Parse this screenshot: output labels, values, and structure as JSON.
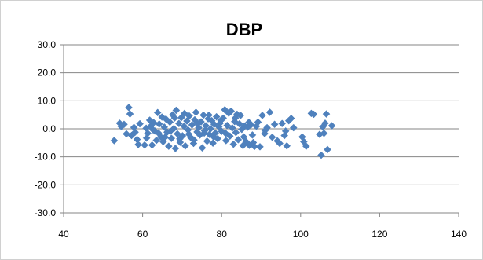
{
  "chart_data": {
    "type": "scatter",
    "title": "DBP",
    "xlabel": "",
    "ylabel": "",
    "xlim": [
      40,
      140
    ],
    "ylim": [
      -30,
      30
    ],
    "x_ticks": [
      40,
      60,
      80,
      100,
      120,
      140
    ],
    "x_tick_labels": [
      "40",
      "60",
      "80",
      "100",
      "120",
      "140"
    ],
    "y_ticks": [
      30,
      20,
      10,
      0,
      -10,
      -20,
      -30
    ],
    "y_tick_labels": [
      "30.0",
      "20.0",
      "10.0",
      "0.0",
      "-10.0",
      "-20.0",
      "-30.0"
    ],
    "grid": "horizontal",
    "legend": "none",
    "marker": "diamond",
    "marker_color": "#4f81bd",
    "grid_color": "#868686",
    "axis_color": "#868686",
    "series": [
      {
        "points": [
          [
            52.8,
            -4.2
          ],
          [
            54.2,
            2.0
          ],
          [
            54.6,
            0.8
          ],
          [
            55.3,
            1.6
          ],
          [
            55.9,
            -1.8
          ],
          [
            56.5,
            7.6
          ],
          [
            56.8,
            5.3
          ],
          [
            57.2,
            -2.4
          ],
          [
            57.8,
            0.5
          ],
          [
            58.1,
            -1.2
          ],
          [
            58.6,
            -3.8
          ],
          [
            58.9,
            -5.6
          ],
          [
            60.5,
            -5.8
          ],
          [
            60.9,
            0.2
          ],
          [
            61.3,
            -1.6
          ],
          [
            61.8,
            3.1
          ],
          [
            62.1,
            1.0
          ],
          [
            62.4,
            -5.8
          ],
          [
            62.8,
            2.2
          ],
          [
            63.1,
            -0.8
          ],
          [
            63.5,
            -4.1
          ],
          [
            63.8,
            5.8
          ],
          [
            64.2,
            1.7
          ],
          [
            64.6,
            -2.9
          ],
          [
            64.9,
            4.2
          ],
          [
            65.2,
            -4.6
          ],
          [
            65.5,
            0.6
          ],
          [
            65.9,
            3.5
          ],
          [
            66.2,
            -1.2
          ],
          [
            66.6,
            -6.2
          ],
          [
            66.9,
            2.4
          ],
          [
            67.3,
            -3.4
          ],
          [
            67.6,
            5.0
          ],
          [
            67.9,
            0.1
          ],
          [
            68.3,
            -7.0
          ],
          [
            68.5,
            6.6
          ],
          [
            68.8,
            -1.8
          ],
          [
            69.2,
            1.9
          ],
          [
            69.5,
            -4.8
          ],
          [
            69.8,
            4.0
          ],
          [
            70.1,
            -2.5
          ],
          [
            70.5,
            0.9
          ],
          [
            70.8,
            -6.1
          ],
          [
            71.2,
            2.8
          ],
          [
            71.5,
            -0.4
          ],
          [
            71.8,
            4.6
          ],
          [
            72.2,
            -3.1
          ],
          [
            72.5,
            1.4
          ],
          [
            72.9,
            -5.2
          ],
          [
            73.2,
            3.2
          ],
          [
            73.5,
            5.9
          ],
          [
            73.8,
            -1.1
          ],
          [
            74.2,
            0.4
          ],
          [
            74.5,
            -2.2
          ],
          [
            74.8,
            2.5
          ],
          [
            75.1,
            -6.8
          ],
          [
            75.4,
            4.9
          ],
          [
            75.7,
            -0.7
          ],
          [
            76.0,
            1.1
          ],
          [
            76.3,
            -4.4
          ],
          [
            76.6,
            3.6
          ],
          [
            76.9,
            -2.0
          ],
          [
            77.2,
            0.0
          ],
          [
            77.5,
            2.9
          ],
          [
            77.8,
            -5.1
          ],
          [
            78.1,
            1.6
          ],
          [
            78.4,
            -1.5
          ],
          [
            78.7,
            4.3
          ],
          [
            79.0,
            -3.5
          ],
          [
            79.3,
            0.7
          ],
          [
            79.6,
            2.0
          ],
          [
            80.0,
            -0.9
          ],
          [
            80.4,
            3.8
          ],
          [
            80.8,
            6.8
          ],
          [
            81.1,
            -4.2
          ],
          [
            81.4,
            1.2
          ],
          [
            81.8,
            5.6
          ],
          [
            82.1,
            -2.6
          ],
          [
            82.4,
            6.3
          ],
          [
            82.7,
            0.3
          ],
          [
            83.0,
            -5.5
          ],
          [
            83.3,
            2.6
          ],
          [
            83.6,
            -1.3
          ],
          [
            83.9,
            5.2
          ],
          [
            84.2,
            -3.9
          ],
          [
            84.5,
            1.8
          ],
          [
            84.8,
            4.8
          ],
          [
            85.1,
            -0.2
          ],
          [
            85.4,
            -6.0
          ],
          [
            85.8,
            1.0
          ],
          [
            86.2,
            -4.6
          ],
          [
            86.6,
            0.6
          ],
          [
            87.0,
            -5.9
          ],
          [
            87.4,
            1.4
          ],
          [
            87.8,
            -2.2
          ],
          [
            88.3,
            -6.3
          ],
          [
            88.8,
            0.9
          ],
          [
            89.2,
            2.4
          ],
          [
            89.7,
            -6.4
          ],
          [
            90.3,
            4.8
          ],
          [
            90.9,
            -1.7
          ],
          [
            91.5,
            0.4
          ],
          [
            92.2,
            5.9
          ],
          [
            92.8,
            -3.0
          ],
          [
            93.4,
            1.6
          ],
          [
            94.1,
            -4.3
          ],
          [
            94.7,
            -5.2
          ],
          [
            95.3,
            1.9
          ],
          [
            95.9,
            -2.4
          ],
          [
            96.5,
            -6.1
          ],
          [
            97.0,
            2.9
          ],
          [
            97.6,
            3.7
          ],
          [
            98.2,
            0.4
          ],
          [
            100.4,
            -2.9
          ],
          [
            100.8,
            -4.6
          ],
          [
            101.4,
            -6.2
          ],
          [
            102.7,
            5.5
          ],
          [
            103.3,
            5.2
          ],
          [
            104.8,
            -2.0
          ],
          [
            105.2,
            -9.4
          ],
          [
            105.6,
            0.7
          ],
          [
            105.9,
            -1.6
          ],
          [
            106.2,
            2.0
          ],
          [
            106.5,
            5.3
          ],
          [
            106.8,
            -7.4
          ],
          [
            107.9,
            1.1
          ],
          [
            59.3,
            1.8
          ],
          [
            61.0,
            -3.3
          ],
          [
            62.6,
            -0.3
          ],
          [
            64.0,
            -1.5
          ],
          [
            65.7,
            -3.0
          ],
          [
            67.0,
            -0.9
          ],
          [
            68.1,
            3.9
          ],
          [
            69.4,
            -3.6
          ],
          [
            70.6,
            5.5
          ],
          [
            71.7,
            -1.9
          ],
          [
            73.0,
            -4.0
          ],
          [
            74.0,
            1.9
          ],
          [
            75.6,
            -1.5
          ],
          [
            76.8,
            4.9
          ],
          [
            78.0,
            -2.9
          ],
          [
            79.8,
            3.0
          ],
          [
            81.0,
            -1.6
          ],
          [
            83.5,
            3.9
          ],
          [
            85.6,
            -2.9
          ],
          [
            86.9,
            2.3
          ],
          [
            88.0,
            -4.9
          ],
          [
            91.0,
            -0.6
          ],
          [
            96.2,
            -0.8
          ]
        ]
      }
    ]
  }
}
